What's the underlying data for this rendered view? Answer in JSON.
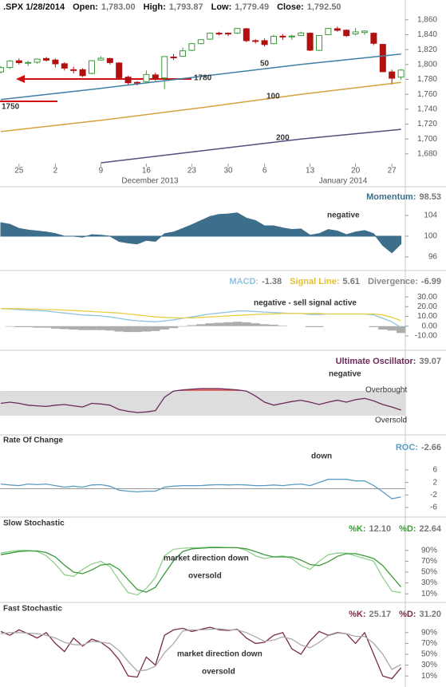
{
  "chart_data": [
    {
      "type": "candlestick",
      "title": ".SPX 1/28/2014",
      "readouts": [
        {
          "name": "Open:",
          "value": 1783,
          "label": "1,783.00"
        },
        {
          "name": "High:",
          "value": 1793.87,
          "label": "1,793.87"
        },
        {
          "name": "Low:",
          "value": 1779.49,
          "label": "1,779.49"
        },
        {
          "name": "Close:",
          "value": 1792.5,
          "label": "1,792.50"
        }
      ],
      "categories": [
        null,
        null,
        "25",
        null,
        null,
        null,
        "2",
        null,
        null,
        null,
        null,
        "9",
        null,
        null,
        null,
        null,
        "16",
        null,
        null,
        null,
        null,
        "23",
        null,
        null,
        null,
        "30",
        null,
        null,
        null,
        "6",
        null,
        null,
        null,
        null,
        "13",
        null,
        null,
        null,
        null,
        "20",
        null,
        null,
        null,
        "27",
        null
      ],
      "x_group_labels": [
        "December 2013",
        "January 2014"
      ],
      "open": [
        1790,
        1796,
        1805,
        1802,
        1803,
        1808,
        1806,
        1801,
        1793,
        1793,
        1788,
        1806,
        1808,
        1802,
        1783,
        1776,
        1777,
        1786,
        1782,
        1810,
        1811,
        1819,
        1828,
        1834,
        1842,
        1842,
        1842,
        1848,
        1832,
        1832,
        1828,
        1838,
        1837,
        1839,
        1842,
        1819,
        1840,
        1848,
        1846,
        1841,
        1843,
        1842,
        1827,
        1790,
        1783
      ],
      "high": [
        1798,
        1806,
        1808,
        1805,
        1808,
        1810,
        1808,
        1803,
        1797,
        1795,
        1806,
        1811,
        1809,
        1803,
        1785,
        1778,
        1792,
        1789,
        1811,
        1814,
        1823,
        1829,
        1834,
        1843,
        1844,
        1843,
        1849,
        1849,
        1834,
        1835,
        1840,
        1841,
        1840,
        1844,
        1843,
        1839,
        1849,
        1851,
        1847,
        1849,
        1846,
        1843,
        1827,
        1793,
        1793.87
      ],
      "low": [
        1788,
        1794,
        1800,
        1798,
        1801,
        1804,
        1796,
        1792,
        1788,
        1783,
        1787,
        1805,
        1800,
        1781,
        1772,
        1772,
        1776,
        1778,
        1767,
        1806,
        1810,
        1818,
        1827,
        1833,
        1839,
        1838,
        1841,
        1830,
        1828,
        1824,
        1827,
        1833,
        1833,
        1838,
        1818,
        1818,
        1840,
        1844,
        1837,
        1839,
        1840,
        1826,
        1790,
        1773,
        1779.49
      ],
      "close": [
        1795.85,
        1804.76,
        1802.48,
        1802.75,
        1807.23,
        1805.81,
        1800.9,
        1795.15,
        1792.81,
        1785.03,
        1805.09,
        1808.37,
        1802.62,
        1782.22,
        1775.5,
        1775.32,
        1786.54,
        1781,
        1810.65,
        1809.6,
        1818.32,
        1827.99,
        1833.32,
        1842.02,
        1841.4,
        1841.07,
        1848.36,
        1831.98,
        1831.37,
        1826.77,
        1837.88,
        1837.49,
        1838.13,
        1842.37,
        1819.2,
        1838.88,
        1848.38,
        1845.89,
        1838.7,
        1843.8,
        1844.86,
        1828.46,
        1790.29,
        1781.56,
        1792.5
      ],
      "up_color": "#3c9a3c",
      "down_color": "#b01010",
      "series": [
        {
          "name": "50",
          "color": "#3f7fa6",
          "x": [
            0,
            11,
            22,
            33,
            44
          ],
          "values": [
            1753,
            1768,
            1784,
            1800,
            1814
          ]
        },
        {
          "name": "100",
          "color": "#d4a23c",
          "x": [
            0,
            11,
            22,
            33,
            44
          ],
          "values": [
            1710,
            1725,
            1742,
            1760,
            1776
          ]
        },
        {
          "name": "200",
          "color": "#5a4a7a",
          "x": [
            11,
            22,
            33,
            44
          ],
          "values": [
            1668,
            1684,
            1700,
            1713
          ]
        }
      ],
      "annotations": [
        "1780",
        "1750"
      ],
      "ylim": [
        1667,
        1878
      ],
      "yticks": [
        {
          "value": 1680,
          "label": "1,680"
        },
        {
          "value": 1700,
          "label": "1,700"
        },
        {
          "value": 1720,
          "label": "1,720"
        },
        {
          "value": 1740,
          "label": "1,740"
        },
        {
          "value": 1760,
          "label": "1,760"
        },
        {
          "value": 1780,
          "label": "1,780"
        },
        {
          "value": 1800,
          "label": "1,800"
        },
        {
          "value": 1820,
          "label": "1,820"
        },
        {
          "value": 1840,
          "label": "1,840"
        },
        {
          "value": 1860,
          "label": "1,860"
        }
      ]
    },
    {
      "type": "area",
      "readouts": [
        {
          "name": "Momentum:",
          "value": 98.53,
          "color": "#3d6e8c"
        }
      ],
      "baseline": 100,
      "color": "#3d6e8c",
      "series": [
        {
          "name": "Momentum",
          "color": "#3d6e8c",
          "values": [
            102.6,
            102.3,
            101.5,
            101.2,
            101,
            100.8,
            100.5,
            100,
            100,
            99.8,
            100.3,
            100.2,
            100,
            99,
            98.7,
            98.5,
            99.2,
            99,
            100.5,
            100.8,
            101.5,
            102.2,
            103,
            103.8,
            104.2,
            104.3,
            104.5,
            103.5,
            103,
            102,
            102,
            101.6,
            101.3,
            101.4,
            100.2,
            100.5,
            101.3,
            101,
            100.3,
            100.8,
            101.1,
            100.5,
            98.2,
            96.8,
            98.53
          ]
        }
      ],
      "annotations": [
        "negative"
      ],
      "ylim": [
        94,
        107.7
      ],
      "yticks": [
        96,
        100,
        104
      ]
    },
    {
      "type": "line",
      "readouts": [
        {
          "name": "MACD:",
          "value": -1.38,
          "color": "#8fc3e0"
        },
        {
          "name": "Signal Line:",
          "value": 5.61,
          "color": "#e0c030"
        },
        {
          "name": "Divergence:",
          "value": -6.99,
          "color": "#888888"
        }
      ],
      "series": [
        {
          "name": "Divergence",
          "color": "#999999",
          "style": "bar",
          "values": [
            0,
            -0.5,
            -1,
            -1,
            -1.5,
            -1.5,
            -2.5,
            -3,
            -3.5,
            -4,
            -4,
            -4,
            -4.5,
            -5.5,
            -6,
            -6,
            -5.5,
            -5,
            -3.5,
            -2,
            -0.5,
            1,
            2,
            3,
            3.5,
            4,
            4.5,
            4,
            3,
            2,
            1.5,
            0.5,
            0,
            0,
            -1,
            -1,
            0,
            0,
            0,
            0,
            0,
            -1,
            -3.5,
            -4.5,
            -6.99
          ]
        },
        {
          "name": "MACD",
          "color": "#8fc3e0",
          "values": [
            18,
            17.5,
            17,
            16.5,
            16,
            15.5,
            14.5,
            13.5,
            12.5,
            11.5,
            11,
            10.5,
            9.5,
            8,
            6.5,
            5.5,
            5,
            4.5,
            5.5,
            6.5,
            8,
            9.5,
            11,
            12.5,
            13.5,
            14.5,
            15.5,
            15.5,
            15,
            14.5,
            14,
            13.5,
            13,
            13,
            12,
            12,
            12.5,
            12.5,
            12.5,
            12.5,
            12.5,
            11.5,
            8,
            4.5,
            -1.38
          ]
        },
        {
          "name": "Signal Line",
          "color": "#e8d045",
          "values": [
            18,
            18,
            18,
            17.5,
            17.5,
            17,
            17,
            16.5,
            16,
            15.5,
            15,
            14.5,
            14,
            13.5,
            12.5,
            11.5,
            10.5,
            9.5,
            9,
            8.5,
            8.5,
            8.5,
            9,
            9.5,
            10,
            10.5,
            11,
            11.5,
            12,
            12.5,
            12.5,
            13,
            13,
            13,
            13,
            13,
            12.5,
            12.5,
            12.5,
            12.5,
            12.5,
            12.5,
            11.5,
            9,
            5.61
          ]
        }
      ],
      "annotations": [
        "negative - sell signal active"
      ],
      "ylim": [
        -19,
        44
      ],
      "yticks": [
        {
          "value": -10,
          "label": "-10.00"
        },
        {
          "value": 0,
          "label": "0.00"
        },
        {
          "value": 10,
          "label": "10.00"
        },
        {
          "value": 20,
          "label": "20.00"
        },
        {
          "value": 30,
          "label": "30.00"
        }
      ]
    },
    {
      "type": "line",
      "readouts": [
        {
          "name": "Ultimate Oscillator:",
          "value": 39.07,
          "color": "#6b2a5a"
        }
      ],
      "upper_band": 70,
      "lower_band": 30,
      "band_color": "#dddddd",
      "over_color": "#d9534f",
      "series": [
        {
          "name": "Ultimate Oscillator",
          "color": "#6b2a5a",
          "values": [
            50,
            52,
            50,
            47,
            46,
            45,
            47,
            48,
            46,
            44,
            50,
            49,
            47,
            40,
            37,
            35,
            36,
            38,
            60,
            70,
            72,
            73,
            74,
            74,
            74,
            73,
            72,
            70,
            62,
            52,
            47,
            50,
            53,
            55,
            52,
            48,
            52,
            55,
            52,
            56,
            58,
            54,
            48,
            44,
            39.07
          ]
        }
      ],
      "annotations": [
        "negative",
        "Overbought",
        "Oversold"
      ],
      "ylim": [
        0,
        100
      ]
    },
    {
      "type": "line",
      "title": "Rate Of Change",
      "readouts": [
        {
          "name": "ROC:",
          "value": -2.66,
          "color": "#5b9bc4"
        }
      ],
      "reference_line": 0,
      "series": [
        {
          "name": "ROC",
          "color": "#5b9bc4",
          "values": [
            1.5,
            1.2,
            1,
            1.5,
            1.3,
            1.5,
            1,
            0.5,
            0.8,
            0.5,
            1.2,
            1.3,
            0.8,
            -0.5,
            -0.8,
            -1,
            -0.8,
            -0.8,
            0.5,
            0.8,
            1,
            1,
            1,
            1.2,
            1.3,
            1.2,
            1.3,
            1.2,
            1,
            1,
            1.2,
            1,
            1.3,
            1.5,
            1,
            2,
            3,
            3,
            3,
            2.5,
            2.5,
            1,
            -1,
            -3.2,
            -2.66
          ]
        }
      ],
      "annotations": [
        "down"
      ],
      "ylim": [
        -8.3,
        8.8
      ],
      "yticks": [
        -6,
        -2,
        2,
        6
      ]
    },
    {
      "type": "line",
      "title": "Slow Stochastic",
      "readouts": [
        {
          "name": "%K:",
          "value": 12.1,
          "label": "12.10",
          "color": "#3a9a3a"
        },
        {
          "name": "%D:",
          "value": 22.64,
          "color": "#3a9a3a"
        }
      ],
      "series": [
        {
          "name": "%K",
          "color": "#8fd08f",
          "values": [
            85,
            88,
            90,
            90,
            88,
            80,
            65,
            45,
            42,
            55,
            65,
            70,
            60,
            35,
            12,
            8,
            20,
            40,
            80,
            92,
            94,
            95,
            95,
            96,
            96,
            95,
            95,
            90,
            80,
            75,
            78,
            80,
            75,
            62,
            55,
            70,
            82,
            85,
            85,
            80,
            75,
            70,
            40,
            15,
            12.1
          ]
        },
        {
          "name": "%D",
          "color": "#3a9a3a",
          "values": [
            82,
            85,
            88,
            89,
            89,
            86,
            78,
            63,
            50,
            47,
            54,
            63,
            65,
            55,
            36,
            18,
            13,
            22,
            47,
            71,
            88,
            93,
            94,
            95,
            95,
            95,
            95,
            93,
            88,
            82,
            78,
            78,
            78,
            72,
            64,
            62,
            69,
            79,
            84,
            84,
            80,
            75,
            62,
            42,
            22.64
          ]
        }
      ],
      "annotations": [
        "market direction down",
        "oversold"
      ],
      "ylim": [
        0,
        100
      ],
      "yticks": [
        {
          "value": 10,
          "label": "10%"
        },
        {
          "value": 30,
          "label": "30%"
        },
        {
          "value": 50,
          "label": "50%"
        },
        {
          "value": 70,
          "label": "70%"
        },
        {
          "value": 90,
          "label": "90%"
        }
      ]
    },
    {
      "type": "line",
      "title": "Fast Stochastic",
      "readouts": [
        {
          "name": "%K:",
          "value": 25.17,
          "color": "#7a2a4a"
        },
        {
          "name": "%D:",
          "value": 31.2,
          "label": "31.20",
          "color": "#7a2a4a"
        }
      ],
      "series": [
        {
          "name": "%K",
          "color": "#7a2a4a",
          "values": [
            92,
            85,
            95,
            88,
            80,
            90,
            70,
            55,
            80,
            65,
            78,
            72,
            60,
            40,
            10,
            8,
            45,
            30,
            85,
            95,
            98,
            92,
            96,
            100,
            95,
            94,
            96,
            80,
            70,
            72,
            85,
            90,
            60,
            50,
            75,
            92,
            85,
            90,
            88,
            70,
            90,
            50,
            10,
            5,
            25.17
          ]
        },
        {
          "name": "%D",
          "color": "#aaaaaa",
          "values": [
            88,
            90,
            90,
            89,
            88,
            85,
            80,
            72,
            68,
            67,
            74,
            72,
            70,
            57,
            37,
            19,
            21,
            28,
            53,
            70,
            93,
            95,
            95,
            96,
            97,
            95,
            95,
            90,
            82,
            74,
            76,
            82,
            78,
            67,
            62,
            72,
            84,
            89,
            88,
            83,
            83,
            70,
            50,
            22,
            31.2
          ]
        }
      ],
      "annotations": [
        "market direction down",
        "oversold"
      ],
      "ylim": [
        0,
        100
      ],
      "yticks": [
        {
          "value": 10,
          "label": "10%"
        },
        {
          "value": 30,
          "label": "30%"
        },
        {
          "value": 50,
          "label": "50%"
        },
        {
          "value": 70,
          "label": "70%"
        },
        {
          "value": 90,
          "label": "90%"
        }
      ]
    }
  ]
}
